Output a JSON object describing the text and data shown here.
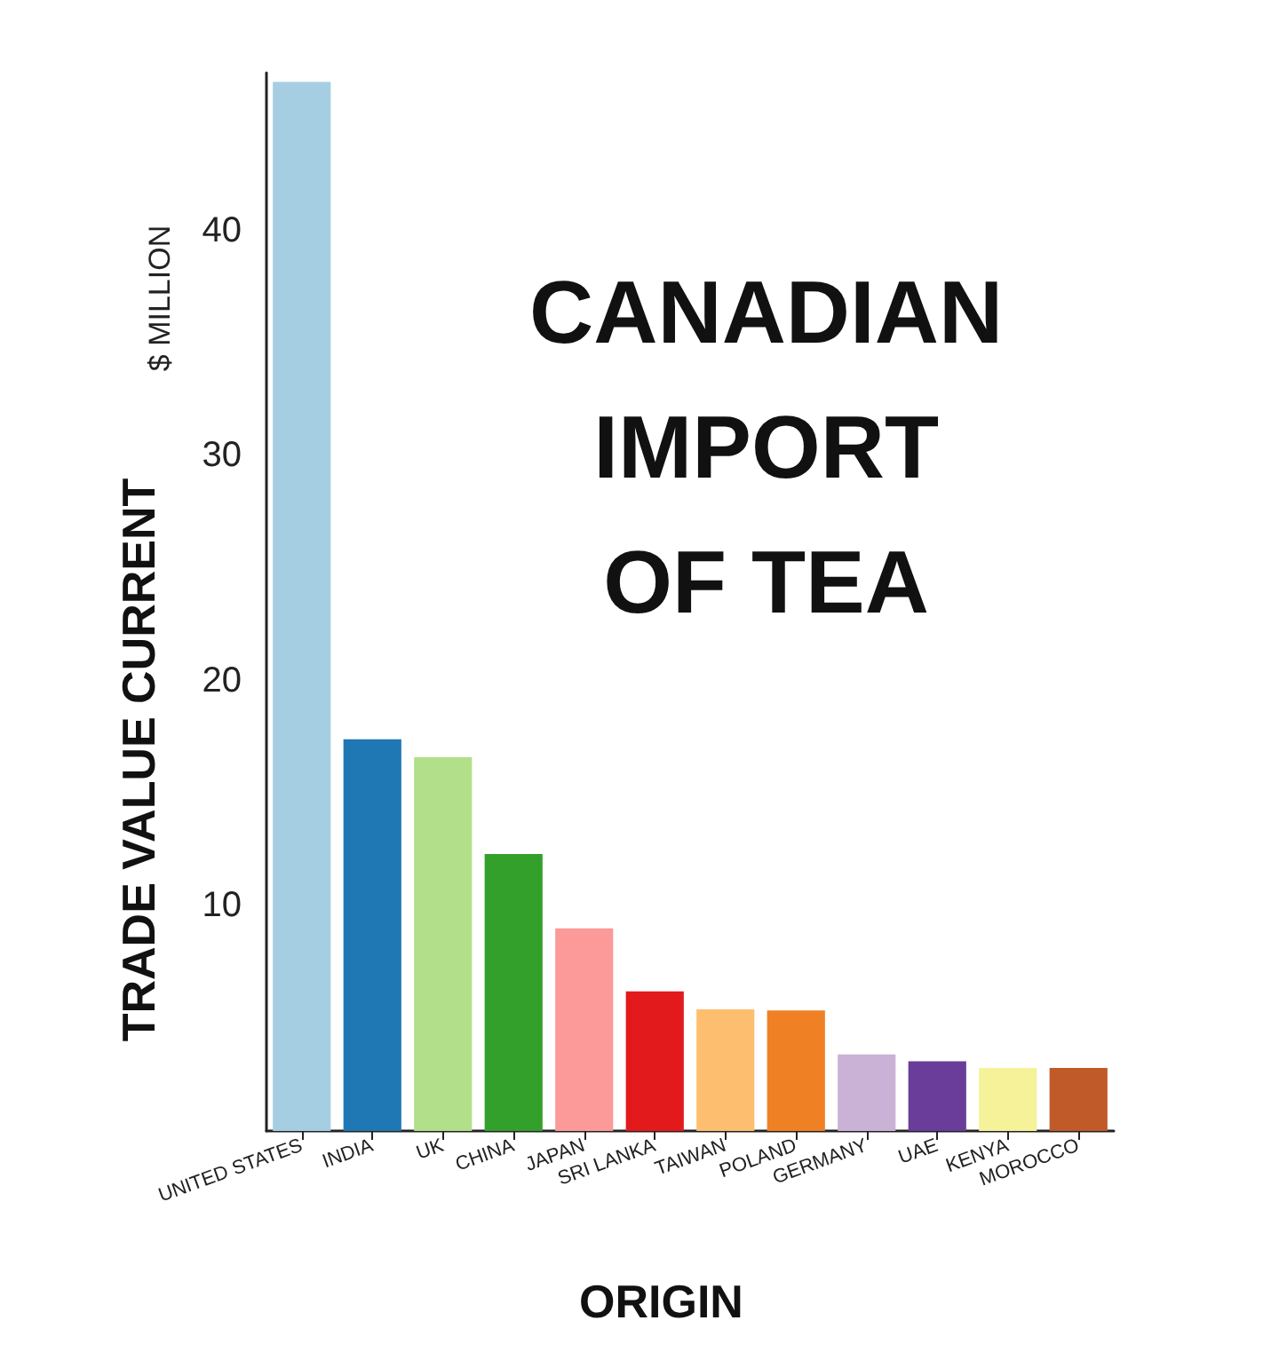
{
  "chart_data": {
    "type": "bar",
    "title": "CANADIAN\nIMPORT\nOF TEA",
    "xlabel": "ORIGIN",
    "ylabel": "TRADE VALUE CURRENT",
    "annotations": [
      "$ MILLION"
    ],
    "categories": [
      "UNITED STATES",
      "INDIA",
      "UK",
      "CHINA",
      "JAPAN",
      "SRI LANKA",
      "TAIWAN",
      "POLAND",
      "GERMANY",
      "UAE",
      "KENYA",
      "MOROCCO"
    ],
    "values": [
      46.6,
      17.4,
      16.6,
      12.3,
      9.0,
      6.2,
      5.4,
      5.35,
      3.4,
      3.1,
      2.8,
      2.8
    ],
    "colors": [
      "#a6cee3",
      "#1f78b4",
      "#b2df8a",
      "#33a02c",
      "#fb9a99",
      "#e31a1c",
      "#fdbf6f",
      "#f08024",
      "#cab2d6",
      "#6a3d9a",
      "#f5f29a",
      "#c05a28"
    ],
    "ylim": [
      0,
      47
    ],
    "yticks": [
      10,
      20,
      30,
      40
    ]
  }
}
